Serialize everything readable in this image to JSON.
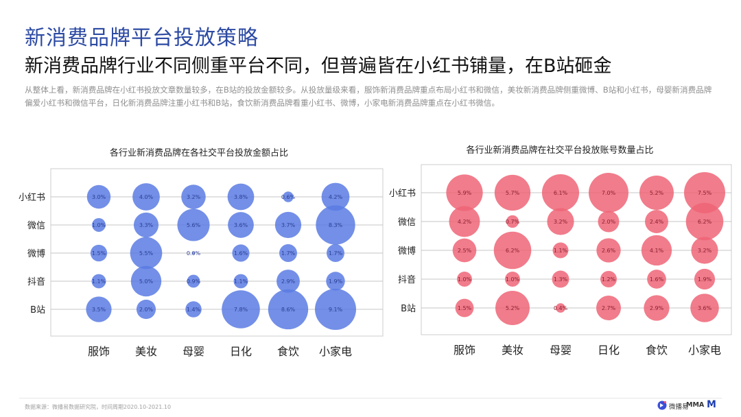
{
  "header": {
    "title": "新消费品牌平台投放策略",
    "subtitle": "新消费品牌行业不同侧重平台不同，但普遍皆在小红书铺量，在B站砸金",
    "description": "从整体上看，新消费品牌在小红书投放文章数量较多，在B站的投放金额较多。从投放量级来看，服饰新消费品牌重点布局小红书和微信，美妆新消费品牌侧重微博、B站和小红书，母婴新消费品牌偏爱小红书和微信平台，日化新消费品牌注重小红书和B站，食饮新消费品牌看重小红书、微博，小家电新消费品牌重点在小红书微信。"
  },
  "footer": {
    "source": "数据来源：微播易数据研究院，时间周期2020.10-2021.10",
    "brand_name": "微播易",
    "brand_mma": "MMA",
    "brand_m": "M"
  },
  "colors": {
    "title": "#2c4aa3",
    "chart1_bubble": "#5b7be3",
    "chart2_bubble": "#ee6577"
  },
  "chart_data": [
    {
      "type": "scatter",
      "title": "各行业新消费品牌在各社交平台投放金额占比",
      "categories": [
        "服饰",
        "美妆",
        "母婴",
        "日化",
        "食饮",
        "小家电"
      ],
      "platforms": [
        "小红书",
        "微信",
        "微博",
        "抖音",
        "B站"
      ],
      "values": [
        [
          3.0,
          4.0,
          3.2,
          3.8,
          0.6,
          4.2
        ],
        [
          1.0,
          3.3,
          5.6,
          3.6,
          3.7,
          8.3
        ],
        [
          1.5,
          5.5,
          0.0,
          1.6,
          1.7,
          1.7
        ],
        [
          1.1,
          5.0,
          0.9,
          1.1,
          2.9,
          1.9
        ],
        [
          3.5,
          2.0,
          1.4,
          7.8,
          8.6,
          9.1
        ]
      ],
      "labels": [
        [
          "3.0%",
          "4.0%",
          "3.2%",
          "3.8%",
          "0.6%",
          "4.2%"
        ],
        [
          "1.0%",
          "3.3%",
          "5.6%",
          "3.6%",
          "3.7%",
          "8.3%"
        ],
        [
          "1.5%",
          "5.5%",
          "0.0%",
          "1.6%",
          "1.7%",
          "1.7%"
        ],
        [
          "1.1%",
          "5.0%",
          "0.9%",
          "1.1%",
          "2.9%",
          "1.9%"
        ],
        [
          "3.5%",
          "2.0%",
          "1.4%",
          "7.8%",
          "8.6%",
          "9.1%"
        ]
      ],
      "grid": true
    },
    {
      "type": "scatter",
      "title": "各行业新消费品牌在社交平台投放账号数量占比",
      "categories": [
        "服饰",
        "美妆",
        "母婴",
        "日化",
        "食饮",
        "小家电"
      ],
      "platforms": [
        "小红书",
        "微信",
        "微博",
        "抖音",
        "B站"
      ],
      "values": [
        [
          5.9,
          5.7,
          6.1,
          7.0,
          5.2,
          7.5
        ],
        [
          4.2,
          0.7,
          3.2,
          2.0,
          2.4,
          6.2
        ],
        [
          2.5,
          6.2,
          1.1,
          2.6,
          4.1,
          3.2
        ],
        [
          1.0,
          1.0,
          1.3,
          1.2,
          1.6,
          1.9
        ],
        [
          1.5,
          5.2,
          0.4,
          2.7,
          2.9,
          3.6
        ]
      ],
      "labels": [
        [
          "5.9%",
          "5.7%",
          "6.1%",
          "7.0%",
          "5.2%",
          "7.5%"
        ],
        [
          "4.2%",
          "0.7%",
          "3.2%",
          "2.0%",
          "2.4%",
          "6.2%"
        ],
        [
          "2.5%",
          "6.2%",
          "1.1%",
          "2.6%",
          "4.1%",
          "3.2%"
        ],
        [
          "1.0%",
          "1.0%",
          "1.3%",
          "1.2%",
          "1.6%",
          "1.9%"
        ],
        [
          "1.5%",
          "5.2%",
          "0.4%",
          "2.7%",
          "2.9%",
          "3.6%"
        ]
      ],
      "grid": true
    }
  ]
}
